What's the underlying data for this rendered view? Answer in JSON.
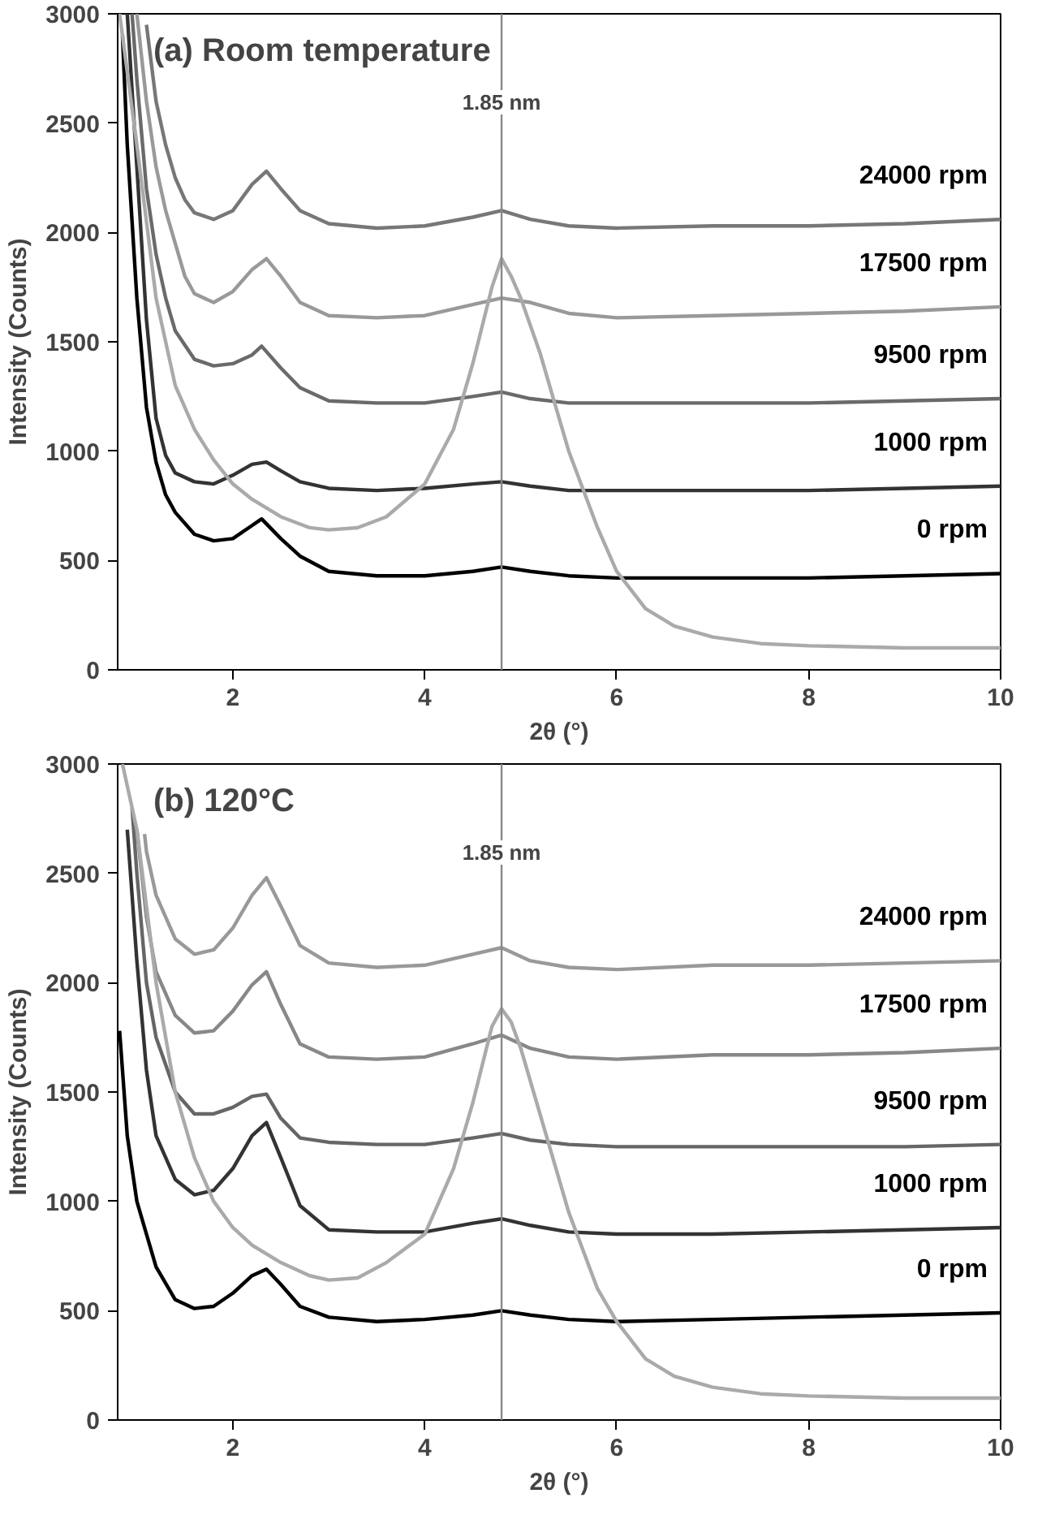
{
  "chart_data": [
    {
      "type": "line",
      "title": "(a) Room temperature",
      "xlabel": "2θ (°)",
      "ylabel": "Intensity (Counts)",
      "xlim": [
        0.8,
        10
      ],
      "ylim": [
        0,
        3000
      ],
      "xticks": [
        2,
        4,
        6,
        8,
        10
      ],
      "yticks": [
        0,
        500,
        1000,
        1500,
        2000,
        2500,
        3000
      ],
      "grid": false,
      "legend": false,
      "line_style": "solid",
      "marker": "none",
      "ref_lines": [
        {
          "axis": "x",
          "value": 4.8,
          "label": "1.85 nm",
          "color": "#888888"
        }
      ],
      "series": [
        {
          "name": "24000 rpm",
          "color": "#777777",
          "x": [
            1.1,
            1.2,
            1.3,
            1.4,
            1.5,
            1.6,
            1.8,
            2.0,
            2.2,
            2.35,
            2.5,
            2.7,
            3.0,
            3.5,
            4.0,
            4.5,
            4.8,
            5.1,
            5.5,
            6,
            7,
            8,
            9,
            10
          ],
          "values": [
            2950,
            2600,
            2400,
            2250,
            2150,
            2090,
            2060,
            2100,
            2220,
            2280,
            2200,
            2100,
            2040,
            2020,
            2030,
            2070,
            2100,
            2060,
            2030,
            2020,
            2030,
            2030,
            2040,
            2060
          ]
        },
        {
          "name": "17500 rpm",
          "color": "#999999",
          "x": [
            1.0,
            1.1,
            1.2,
            1.3,
            1.4,
            1.5,
            1.6,
            1.8,
            2.0,
            2.2,
            2.35,
            2.5,
            2.7,
            3.0,
            3.5,
            4.0,
            4.5,
            4.8,
            5.1,
            5.5,
            6,
            7,
            8,
            9,
            10
          ],
          "values": [
            3000,
            2600,
            2300,
            2100,
            1950,
            1800,
            1720,
            1680,
            1730,
            1830,
            1880,
            1800,
            1680,
            1620,
            1610,
            1620,
            1670,
            1700,
            1680,
            1630,
            1610,
            1620,
            1630,
            1640,
            1660
          ]
        },
        {
          "name": "9500 rpm",
          "color": "#6a6a6a",
          "x": [
            0.95,
            1.0,
            1.1,
            1.2,
            1.3,
            1.4,
            1.6,
            1.8,
            2.0,
            2.2,
            2.3,
            2.5,
            2.7,
            3.0,
            3.5,
            4.0,
            4.5,
            4.8,
            5.1,
            5.5,
            6,
            7,
            8,
            9,
            10
          ],
          "values": [
            3000,
            2700,
            2200,
            1900,
            1700,
            1550,
            1420,
            1390,
            1400,
            1440,
            1480,
            1380,
            1290,
            1230,
            1220,
            1220,
            1250,
            1270,
            1240,
            1220,
            1220,
            1220,
            1220,
            1230,
            1240
          ]
        },
        {
          "name": "1000 rpm",
          "color": "#333333",
          "x": [
            0.9,
            1.0,
            1.1,
            1.2,
            1.3,
            1.4,
            1.6,
            1.8,
            2.0,
            2.2,
            2.35,
            2.5,
            2.7,
            3.0,
            3.5,
            4.0,
            4.5,
            4.8,
            5.1,
            5.5,
            6,
            7,
            8,
            9,
            10
          ],
          "values": [
            3000,
            2300,
            1600,
            1150,
            980,
            900,
            860,
            850,
            890,
            940,
            950,
            910,
            860,
            830,
            820,
            830,
            850,
            860,
            840,
            820,
            820,
            820,
            820,
            830,
            840
          ]
        },
        {
          "name": "0 rpm",
          "color": "#000000",
          "x": [
            0.85,
            0.9,
            1.0,
            1.1,
            1.2,
            1.3,
            1.4,
            1.6,
            1.8,
            2.0,
            2.2,
            2.3,
            2.5,
            2.7,
            3.0,
            3.5,
            4.0,
            4.5,
            4.8,
            5.1,
            5.5,
            6,
            7,
            8,
            9,
            10
          ],
          "values": [
            2900,
            2400,
            1700,
            1200,
            950,
            800,
            720,
            620,
            590,
            600,
            660,
            690,
            600,
            520,
            450,
            430,
            430,
            450,
            470,
            450,
            430,
            420,
            420,
            420,
            430,
            440
          ]
        },
        {
          "color": "#aaaaaa",
          "x": [
            0.82,
            1.0,
            1.2,
            1.4,
            1.6,
            1.8,
            2.0,
            2.2,
            2.5,
            2.8,
            3.0,
            3.3,
            3.6,
            4.0,
            4.3,
            4.5,
            4.7,
            4.8,
            4.9,
            5.0,
            5.2,
            5.5,
            5.8,
            6.0,
            6.3,
            6.6,
            7.0,
            7.5,
            8,
            9,
            10
          ],
          "values": [
            3000,
            2400,
            1700,
            1300,
            1100,
            960,
            850,
            780,
            700,
            650,
            640,
            650,
            700,
            850,
            1100,
            1400,
            1750,
            1880,
            1800,
            1700,
            1450,
            1000,
            650,
            450,
            280,
            200,
            150,
            120,
            110,
            100,
            100
          ]
        }
      ]
    },
    {
      "type": "line",
      "title": "(b) 120°C",
      "xlabel": "2θ (°)",
      "ylabel": "Intensity (Counts)",
      "xlim": [
        0.8,
        10
      ],
      "ylim": [
        0,
        3000
      ],
      "xticks": [
        2,
        4,
        6,
        8,
        10
      ],
      "yticks": [
        0,
        500,
        1000,
        1500,
        2000,
        2500,
        3000
      ],
      "grid": false,
      "legend": false,
      "line_style": "solid",
      "marker": "none",
      "ref_lines": [
        {
          "axis": "x",
          "value": 4.8,
          "label": "1.85 nm",
          "color": "#888888"
        }
      ],
      "series": [
        {
          "name": "24000 rpm",
          "color": "#999999",
          "x": [
            1.08,
            1.1,
            1.2,
            1.4,
            1.6,
            1.8,
            2.0,
            2.2,
            2.35,
            2.5,
            2.7,
            3.0,
            3.5,
            4.0,
            4.5,
            4.8,
            5.1,
            5.5,
            6,
            7,
            8,
            9,
            10
          ],
          "values": [
            2680,
            2600,
            2400,
            2200,
            2130,
            2150,
            2250,
            2400,
            2480,
            2350,
            2170,
            2090,
            2070,
            2080,
            2130,
            2160,
            2100,
            2070,
            2060,
            2080,
            2080,
            2090,
            2100
          ]
        },
        {
          "name": "17500 rpm",
          "color": "#888888",
          "x": [
            1.0,
            1.1,
            1.2,
            1.4,
            1.6,
            1.8,
            2.0,
            2.2,
            2.35,
            2.5,
            2.7,
            3.0,
            3.5,
            4.0,
            4.5,
            4.8,
            5.1,
            5.5,
            6,
            7,
            8,
            9,
            10
          ],
          "values": [
            2700,
            2300,
            2050,
            1850,
            1770,
            1780,
            1870,
            1990,
            2050,
            1900,
            1720,
            1660,
            1650,
            1660,
            1720,
            1760,
            1700,
            1660,
            1650,
            1670,
            1670,
            1680,
            1700
          ]
        },
        {
          "name": "9500 rpm",
          "color": "#666666",
          "x": [
            0.95,
            1.0,
            1.1,
            1.2,
            1.4,
            1.6,
            1.8,
            2.0,
            2.2,
            2.35,
            2.5,
            2.7,
            3.0,
            3.5,
            4.0,
            4.5,
            4.8,
            5.1,
            5.5,
            6,
            7,
            8,
            9,
            10
          ],
          "values": [
            2800,
            2500,
            2000,
            1750,
            1500,
            1400,
            1400,
            1430,
            1480,
            1490,
            1380,
            1290,
            1270,
            1260,
            1260,
            1290,
            1310,
            1280,
            1260,
            1250,
            1250,
            1250,
            1250,
            1260
          ]
        },
        {
          "name": "1000 rpm",
          "color": "#333333",
          "x": [
            0.9,
            1.0,
            1.1,
            1.2,
            1.4,
            1.6,
            1.8,
            2.0,
            2.2,
            2.35,
            2.5,
            2.7,
            3.0,
            3.5,
            4.0,
            4.5,
            4.8,
            5.1,
            5.5,
            6,
            7,
            8,
            9,
            10
          ],
          "values": [
            2700,
            2100,
            1600,
            1300,
            1100,
            1030,
            1050,
            1150,
            1300,
            1360,
            1200,
            980,
            870,
            860,
            860,
            900,
            920,
            890,
            860,
            850,
            850,
            860,
            870,
            880
          ]
        },
        {
          "name": "0 rpm",
          "color": "#000000",
          "x": [
            0.82,
            0.9,
            1.0,
            1.1,
            1.2,
            1.4,
            1.6,
            1.8,
            2.0,
            2.2,
            2.35,
            2.5,
            2.7,
            3.0,
            3.5,
            4.0,
            4.5,
            4.8,
            5.1,
            5.5,
            6,
            7,
            8,
            9,
            10
          ],
          "values": [
            1780,
            1300,
            1000,
            850,
            700,
            550,
            510,
            520,
            580,
            660,
            690,
            620,
            520,
            470,
            450,
            460,
            480,
            500,
            480,
            460,
            450,
            460,
            470,
            480,
            490
          ]
        },
        {
          "color": "#aaaaaa",
          "x": [
            0.85,
            1.0,
            1.2,
            1.4,
            1.6,
            1.8,
            2.0,
            2.2,
            2.5,
            2.8,
            3.0,
            3.3,
            3.6,
            4.0,
            4.3,
            4.5,
            4.7,
            4.8,
            4.9,
            5.0,
            5.2,
            5.5,
            5.8,
            6.0,
            6.3,
            6.6,
            7.0,
            7.5,
            8,
            9,
            10
          ],
          "values": [
            3000,
            2700,
            2000,
            1500,
            1200,
            1000,
            880,
            800,
            720,
            660,
            640,
            650,
            720,
            850,
            1150,
            1450,
            1800,
            1880,
            1820,
            1700,
            1400,
            950,
            600,
            450,
            280,
            200,
            150,
            120,
            110,
            100,
            100
          ]
        }
      ]
    }
  ]
}
